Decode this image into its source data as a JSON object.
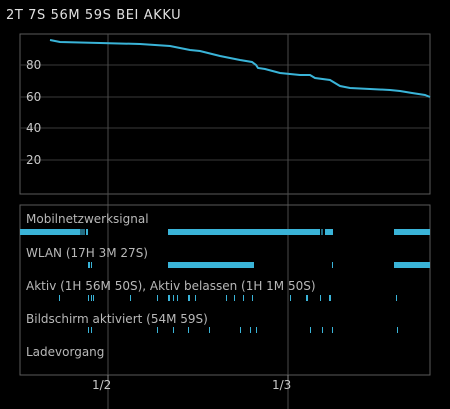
{
  "header": {
    "title": "2T 7S 56M 59S BEI AKKU"
  },
  "battery_chart": {
    "y_ticks": [
      "80",
      "60",
      "40",
      "20"
    ],
    "x_ticks": [
      "1/2",
      "1/3"
    ],
    "line_color": "#3ab4d8"
  },
  "lanes": {
    "mobile": {
      "label": "Mobilnetzwerksignal"
    },
    "wlan": {
      "label": "WLAN (17H 3M 27S)"
    },
    "aktiv": {
      "label": "Aktiv (1H 56M 50S), Aktiv belassen (1H 1M 50S)"
    },
    "screen": {
      "label": "Bildschirm aktiviert (54M 59S)"
    },
    "charging": {
      "label": "Ladevorgang"
    }
  }
}
